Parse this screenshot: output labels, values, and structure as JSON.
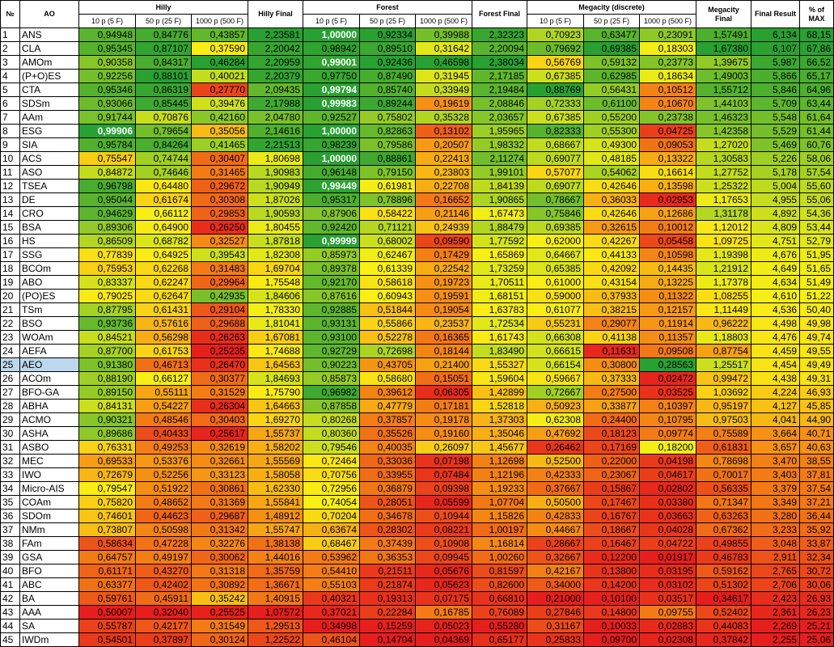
{
  "headers": {
    "no": "№",
    "ao": "AO",
    "hilly": "Hilly",
    "hilly_final": "Hilly Final",
    "forest": "Forest",
    "forest_final": "Forest Final",
    "megacity": "Megacity (discrete)",
    "megacity_final": "Megacity Final",
    "final_result": "Final Result",
    "pct_max": "% of MAX",
    "sub": [
      "10 p (5 F)",
      "50 p (25 F)",
      "1000 p (500 F)"
    ]
  },
  "highlight_row": 25,
  "rows": [
    [
      "1",
      "ANS",
      "0,94948",
      "0,84776",
      "0,43857",
      "2,23581",
      "1,00000",
      "0,92334",
      "0,39988",
      "2,32323",
      "0,70923",
      "0,63477",
      "0,23091",
      "1,57491",
      "6,134",
      "68,15"
    ],
    [
      "2",
      "CLA",
      "0,95345",
      "0,87107",
      "0,37590",
      "2,20042",
      "0,98942",
      "0,89510",
      "0,31642",
      "2,20094",
      "0,79692",
      "0,69385",
      "0,18303",
      "1,67380",
      "6,107",
      "67,86"
    ],
    [
      "3",
      "AMOm",
      "0,90358",
      "0,84317",
      "0,46284",
      "2,20959",
      "0,99001",
      "0,92436",
      "0,46598",
      "2,38034",
      "0,56769",
      "0,59132",
      "0,23773",
      "1,39675",
      "5,987",
      "66,52"
    ],
    [
      "4",
      "(P+O)ES",
      "0,92256",
      "0,88101",
      "0,40021",
      "2,20379",
      "0,97750",
      "0,87490",
      "0,31945",
      "2,17185",
      "0,67385",
      "0,62985",
      "0,18634",
      "1,49003",
      "5,866",
      "65,17"
    ],
    [
      "5",
      "CTA",
      "0,95346",
      "0,86319",
      "0,27770",
      "2,09435",
      "0,99794",
      "0,85740",
      "0,33949",
      "2,19484",
      "0,88769",
      "0,56431",
      "0,10512",
      "1,55712",
      "5,846",
      "64,96"
    ],
    [
      "6",
      "SDSm",
      "0,93066",
      "0,85445",
      "0,39476",
      "2,17988",
      "0,99983",
      "0,89244",
      "0,19619",
      "2,08846",
      "0,72333",
      "0,61100",
      "0,10670",
      "1,44103",
      "5,709",
      "63,44"
    ],
    [
      "7",
      "AAm",
      "0,91744",
      "0,70876",
      "0,42160",
      "2,04780",
      "0,92527",
      "0,75802",
      "0,35328",
      "2,03657",
      "0,67385",
      "0,55200",
      "0,23738",
      "1,46323",
      "5,548",
      "61,64"
    ],
    [
      "8",
      "ESG",
      "0,99906",
      "0,79654",
      "0,35056",
      "2,14616",
      "1,00000",
      "0,82863",
      "0,13102",
      "1,95965",
      "0,82333",
      "0,55300",
      "0,04725",
      "1,42358",
      "5,529",
      "61,44"
    ],
    [
      "9",
      "SIA",
      "0,95784",
      "0,84264",
      "0,41465",
      "2,21513",
      "0,98239",
      "0,79586",
      "0,20507",
      "1,98332",
      "0,68667",
      "0,49300",
      "0,09053",
      "1,27020",
      "5,469",
      "60,76"
    ],
    [
      "10",
      "ACS",
      "0,75547",
      "0,74744",
      "0,30407",
      "1,80698",
      "1,00000",
      "0,88861",
      "0,22413",
      "2,11274",
      "0,69077",
      "0,48185",
      "0,13322",
      "1,30583",
      "5,226",
      "58,06"
    ],
    [
      "11",
      "ASO",
      "0,84872",
      "0,74646",
      "0,31465",
      "1,90983",
      "0,96148",
      "0,79150",
      "0,23803",
      "1,99101",
      "0,57077",
      "0,54062",
      "0,16614",
      "1,27752",
      "5,178",
      "57,54"
    ],
    [
      "12",
      "TSEA",
      "0,96798",
      "0,64480",
      "0,29672",
      "1,90949",
      "0,99449",
      "0,61981",
      "0,22708",
      "1,84139",
      "0,69077",
      "0,42646",
      "0,13598",
      "1,25322",
      "5,004",
      "55,60"
    ],
    [
      "13",
      "DE",
      "0,95044",
      "0,61674",
      "0,30308",
      "1,87026",
      "0,95317",
      "0,78896",
      "0,16652",
      "1,90865",
      "0,78667",
      "0,36033",
      "0,02953",
      "1,17653",
      "4,955",
      "55,06"
    ],
    [
      "14",
      "CRO",
      "0,94629",
      "0,66112",
      "0,29853",
      "1,90593",
      "0,87906",
      "0,58422",
      "0,21146",
      "1,67473",
      "0,75846",
      "0,42646",
      "0,12686",
      "1,31178",
      "4,892",
      "54,36"
    ],
    [
      "15",
      "BSA",
      "0,89306",
      "0,64900",
      "0,26250",
      "1,80455",
      "0,92420",
      "0,71121",
      "0,24939",
      "1,88479",
      "0,69385",
      "0,32615",
      "0,10012",
      "1,12012",
      "4,809",
      "53,44"
    ],
    [
      "16",
      "HS",
      "0,86509",
      "0,68782",
      "0,32527",
      "1,87818",
      "0,99999",
      "0,68002",
      "0,09590",
      "1,77592",
      "0,62000",
      "0,42267",
      "0,05458",
      "1,09725",
      "4,751",
      "52,79"
    ],
    [
      "17",
      "SSG",
      "0,77839",
      "0,64925",
      "0,39543",
      "1,82308",
      "0,85973",
      "0,62467",
      "0,17429",
      "1,65869",
      "0,64667",
      "0,44133",
      "0,10598",
      "1,19398",
      "4,676",
      "51,95"
    ],
    [
      "18",
      "BCOm",
      "0,75953",
      "0,62268",
      "0,31483",
      "1,69704",
      "0,89378",
      "0,61339",
      "0,22542",
      "1,73259",
      "0,65385",
      "0,42092",
      "0,14435",
      "1,21912",
      "4,649",
      "51,65"
    ],
    [
      "19",
      "ABO",
      "0,83337",
      "0,62247",
      "0,29964",
      "1,75548",
      "0,92170",
      "0,58618",
      "0,19723",
      "1,70511",
      "0,61000",
      "0,43154",
      "0,13225",
      "1,17378",
      "4,634",
      "51,49"
    ],
    [
      "20",
      "(PO)ES",
      "0,79025",
      "0,62647",
      "0,42935",
      "1,84606",
      "0,87616",
      "0,60943",
      "0,19591",
      "1,68151",
      "0,59000",
      "0,37933",
      "0,11322",
      "1,08255",
      "4,610",
      "51,22"
    ],
    [
      "21",
      "TSm",
      "0,87795",
      "0,61431",
      "0,29104",
      "1,78330",
      "0,92885",
      "0,51844",
      "0,19054",
      "1,63783",
      "0,61077",
      "0,38215",
      "0,12157",
      "1,11449",
      "4,536",
      "50,40"
    ],
    [
      "22",
      "BSO",
      "0,93736",
      "0,57616",
      "0,29688",
      "1,81041",
      "0,93131",
      "0,55866",
      "0,23537",
      "1,72534",
      "0,55231",
      "0,29077",
      "0,11914",
      "0,96222",
      "4,498",
      "49,98"
    ],
    [
      "23",
      "WOAm",
      "0,84521",
      "0,56298",
      "0,26263",
      "1,67081",
      "0,93100",
      "0,52278",
      "0,16365",
      "1,61743",
      "0,66308",
      "0,41138",
      "0,11357",
      "1,18803",
      "4,476",
      "49,74"
    ],
    [
      "24",
      "AEFA",
      "0,87700",
      "0,61753",
      "0,25235",
      "1,74688",
      "0,92729",
      "0,72698",
      "0,18144",
      "1,83490",
      "0,66615",
      "0,11631",
      "0,09508",
      "0,87754",
      "4,459",
      "49,55"
    ],
    [
      "25",
      "AEO",
      "0,91380",
      "0,46713",
      "0,26470",
      "1,64563",
      "0,90223",
      "0,43705",
      "0,21400",
      "1,55327",
      "0,66154",
      "0,30800",
      "0,28563",
      "1,25517",
      "4,454",
      "49,49"
    ],
    [
      "26",
      "ACOm",
      "0,88190",
      "0,66127",
      "0,30377",
      "1,84693",
      "0,85873",
      "0,58680",
      "0,15051",
      "1,59604",
      "0,59667",
      "0,37333",
      "0,02472",
      "0,99472",
      "4,438",
      "49,31"
    ],
    [
      "27",
      "BFO-GA",
      "0,89150",
      "0,55111",
      "0,31529",
      "1,75790",
      "0,96982",
      "0,39612",
      "0,06305",
      "1,42899",
      "0,72667",
      "0,27500",
      "0,03525",
      "1,03692",
      "4,224",
      "46,93"
    ],
    [
      "28",
      "ABHA",
      "0,84131",
      "0,54227",
      "0,26304",
      "1,64663",
      "0,87858",
      "0,47779",
      "0,17181",
      "1,52818",
      "0,50923",
      "0,33877",
      "0,10397",
      "0,95197",
      "4,127",
      "45,85"
    ],
    [
      "29",
      "ACMO",
      "0,90321",
      "0,48546",
      "0,30403",
      "1,69270",
      "0,80268",
      "0,37857",
      "0,19178",
      "1,37303",
      "0,62308",
      "0,24400",
      "0,10795",
      "0,97503",
      "4,041",
      "44,90"
    ],
    [
      "30",
      "ASHA",
      "0,89686",
      "0,40433",
      "0,25617",
      "1,55737",
      "0,80360",
      "0,35526",
      "0,19160",
      "1,35046",
      "0,47692",
      "0,18123",
      "0,09774",
      "0,75589",
      "3,664",
      "40,71"
    ],
    [
      "31",
      "ASBO",
      "0,76331",
      "0,49253",
      "0,32619",
      "1,58202",
      "0,79546",
      "0,40035",
      "0,26097",
      "1,45677",
      "0,26462",
      "0,17169",
      "0,18200",
      "0,61831",
      "3,657",
      "40,63"
    ],
    [
      "32",
      "MEC",
      "0,69533",
      "0,53376",
      "0,32661",
      "1,55569",
      "0,72464",
      "0,33036",
      "0,07198",
      "1,12698",
      "0,52500",
      "0,22000",
      "0,04198",
      "0,78698",
      "3,470",
      "38,55"
    ],
    [
      "33",
      "IWO",
      "0,72679",
      "0,52256",
      "0,33123",
      "1,58058",
      "0,70756",
      "0,33955",
      "0,07484",
      "1,12196",
      "0,42333",
      "0,23067",
      "0,04617",
      "0,70017",
      "3,403",
      "37,81"
    ],
    [
      "34",
      "Micro-AIS",
      "0,79547",
      "0,51922",
      "0,30861",
      "1,62330",
      "0,72956",
      "0,36879",
      "0,09398",
      "1,19233",
      "0,37667",
      "0,15867",
      "0,02802",
      "0,56335",
      "3,379",
      "37,54"
    ],
    [
      "35",
      "COAm",
      "0,75820",
      "0,48652",
      "0,31369",
      "1,55841",
      "0,74054",
      "0,28051",
      "0,05599",
      "1,07704",
      "0,50500",
      "0,17467",
      "0,03380",
      "0,71347",
      "3,349",
      "37,21"
    ],
    [
      "36",
      "SDOm",
      "0,74601",
      "0,44623",
      "0,29687",
      "1,48912",
      "0,70204",
      "0,34678",
      "0,10944",
      "1,15826",
      "0,42833",
      "0,16767",
      "0,03663",
      "0,63263",
      "3,280",
      "36,44"
    ],
    [
      "37",
      "NMm",
      "0,73807",
      "0,50598",
      "0,31342",
      "1,55747",
      "0,63674",
      "0,28302",
      "0,08221",
      "1,00197",
      "0,44667",
      "0,18667",
      "0,04028",
      "0,67362",
      "3,233",
      "35,92"
    ],
    [
      "38",
      "FAm",
      "0,58634",
      "0,47228",
      "0,32276",
      "1,38138",
      "0,68467",
      "0,37439",
      "0,10908",
      "1,16814",
      "0,28667",
      "0,16467",
      "0,04722",
      "0,49855",
      "3,048",
      "33,87"
    ],
    [
      "39",
      "GSA",
      "0,64757",
      "0,49197",
      "0,30062",
      "1,44016",
      "0,53962",
      "0,36353",
      "0,09945",
      "1,00260",
      "0,32667",
      "0,12200",
      "0,01917",
      "0,46783",
      "2,911",
      "32,34"
    ],
    [
      "40",
      "BFO",
      "0,61171",
      "0,43270",
      "0,31318",
      "1,35759",
      "0,54410",
      "0,21511",
      "0,05676",
      "0,81597",
      "0,42167",
      "0,13800",
      "0,03195",
      "0,59162",
      "2,765",
      "30,72"
    ],
    [
      "41",
      "ABC",
      "0,63377",
      "0,42402",
      "0,30892",
      "1,36671",
      "0,55103",
      "0,21874",
      "0,05623",
      "0,82600",
      "0,34000",
      "0,14200",
      "0,03102",
      "0,51302",
      "2,706",
      "30,06"
    ],
    [
      "42",
      "BA",
      "0,59761",
      "0,45911",
      "0,35242",
      "1,40915",
      "0,40321",
      "0,19313",
      "0,07175",
      "0,66810",
      "0,21000",
      "0,10100",
      "0,03517",
      "0,34617",
      "2,423",
      "26,93"
    ],
    [
      "43",
      "AAA",
      "0,50007",
      "0,32040",
      "0,25525",
      "1,07572",
      "0,37021",
      "0,22284",
      "0,16785",
      "0,76089",
      "0,27846",
      "0,14800",
      "0,09755",
      "0,52402",
      "2,361",
      "26,23"
    ],
    [
      "44",
      "SA",
      "0,55787",
      "0,42177",
      "0,31549",
      "1,29513",
      "0,34998",
      "0,15259",
      "0,05023",
      "0,55280",
      "0,31167",
      "0,10033",
      "0,02883",
      "0,44083",
      "2,269",
      "25,21"
    ],
    [
      "45",
      "IWDm",
      "0,54501",
      "0,37897",
      "0,30124",
      "1,22522",
      "0,46104",
      "0,14704",
      "0,04369",
      "0,65177",
      "0,25833",
      "0,09700",
      "0,02308",
      "0,37842",
      "2,255",
      "25,06"
    ]
  ]
}
